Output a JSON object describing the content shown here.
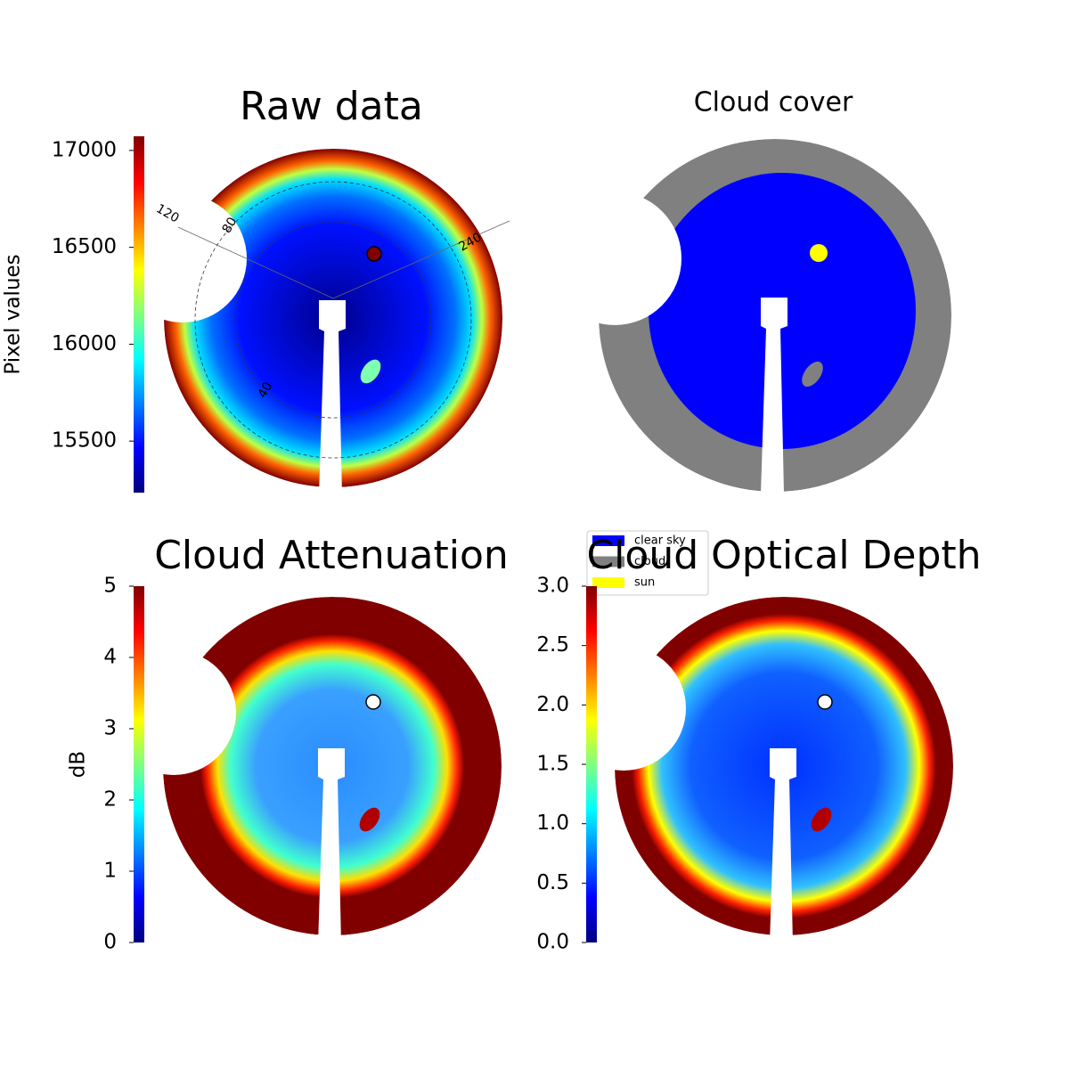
{
  "chart_data": [
    {
      "type": "heatmap",
      "title": "Raw data",
      "colorbar_label": "Pixel values",
      "colormap": "jet",
      "ylim": [
        15234,
        17073
      ],
      "yticks": [
        15500,
        16000,
        16500,
        17000
      ],
      "annotations": [
        "120",
        "240",
        "80",
        "40"
      ]
    },
    {
      "type": "categorical",
      "title": "Cloud cover",
      "categories": [
        "clear sky",
        "cloud",
        "sun"
      ],
      "colors": [
        "#0000ff",
        "#808080",
        "#ffff00"
      ]
    },
    {
      "type": "heatmap",
      "title": "Cloud Attenuation",
      "colorbar_label": "dB",
      "colormap": "jet",
      "ylim": [
        0,
        5
      ],
      "yticks": [
        0,
        1,
        2,
        3,
        4,
        5
      ]
    },
    {
      "type": "heatmap",
      "title": "Cloud Optical Depth",
      "colormap": "jet",
      "ylim": [
        0,
        3
      ],
      "yticks": [
        {
          "value": 0,
          "label": "0.0"
        },
        {
          "value": 0.5,
          "label": "0.5"
        },
        {
          "value": 1,
          "label": "1.0"
        },
        {
          "value": 1.5,
          "label": "1.5"
        },
        {
          "value": 2,
          "label": "2.0"
        },
        {
          "value": 2.5,
          "label": "2.5"
        },
        {
          "value": 3,
          "label": "3.0"
        }
      ]
    }
  ]
}
